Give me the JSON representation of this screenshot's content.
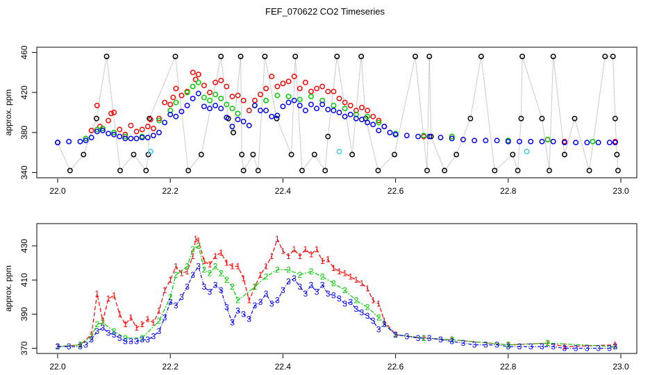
{
  "title": "FEF_070622  CO2 Timeseries",
  "colors": {
    "black": "#000000",
    "red": "#ff0000",
    "green": "#00cc00",
    "blue": "#0000ff",
    "cyan": "#33ccee",
    "grey": "#9a9a9a"
  },
  "chart_data": [
    {
      "type": "scatter",
      "title": "",
      "xlabel": "",
      "ylabel": "approx. ppm",
      "xlim": [
        22.0,
        23.0
      ],
      "ylim": [
        340,
        460
      ],
      "x_ticks": [
        "22.0",
        "22.2",
        "22.4",
        "22.6",
        "22.8",
        "23.0"
      ],
      "y_ticks": [
        "340",
        "380",
        "420",
        "460"
      ],
      "series": [
        {
          "name": "black",
          "color": "#000000",
          "description": "open circles; values mostly at extremes 342/358/394/456 connected by grey vertical lines",
          "x": [
            22.0,
            22.022,
            22.046,
            22.069,
            22.087,
            22.111,
            22.135,
            22.157,
            22.161,
            22.163,
            22.209,
            22.232,
            22.255,
            22.29,
            22.303,
            22.312,
            22.325,
            22.327,
            22.33,
            22.347,
            22.356,
            22.368,
            22.389,
            22.415,
            22.422,
            22.434,
            22.456,
            22.475,
            22.48,
            22.496,
            22.523,
            22.539,
            22.547,
            22.569,
            22.598,
            22.635,
            22.656,
            22.66,
            22.663,
            22.687,
            22.708,
            22.733,
            22.752,
            22.776,
            22.808,
            22.817,
            22.823,
            22.825,
            22.86,
            22.873,
            22.88,
            22.9,
            22.918,
            22.944,
            22.972,
            22.986,
            22.99,
            22.993,
            22.995
          ],
          "y": [
            370,
            342,
            358,
            394,
            456,
            342,
            358,
            342,
            358,
            394,
            456,
            342,
            358,
            456,
            394,
            380,
            456,
            358,
            342,
            358,
            342,
            456,
            394,
            358,
            456,
            342,
            358,
            342,
            376,
            456,
            358,
            456,
            394,
            342,
            358,
            456,
            342,
            456,
            376,
            342,
            358,
            394,
            456,
            342,
            358,
            342,
            394,
            456,
            394,
            342,
            456,
            358,
            394,
            342,
            456,
            456,
            394,
            358,
            342
          ]
        },
        {
          "name": "red",
          "color": "#ff0000",
          "x": [
            22.05,
            22.06,
            22.07,
            22.075,
            22.08,
            22.09,
            22.095,
            22.1,
            22.11,
            22.12,
            22.13,
            22.14,
            22.15,
            22.16,
            22.165,
            22.17,
            22.18,
            22.19,
            22.2,
            22.205,
            22.21,
            22.22,
            22.23,
            22.24,
            22.245,
            22.25,
            22.26,
            22.27,
            22.28,
            22.29,
            22.3,
            22.31,
            22.32,
            22.33,
            22.34,
            22.35,
            22.36,
            22.37,
            22.38,
            22.39,
            22.4,
            22.41,
            22.42,
            22.43,
            22.44,
            22.45,
            22.46,
            22.47,
            22.48,
            22.49,
            22.5,
            22.51,
            22.52,
            22.53,
            22.54,
            22.55,
            22.56,
            22.57,
            22.58,
            22.6,
            22.65,
            22.7,
            22.8,
            22.87,
            22.9,
            22.99
          ],
          "y": [
            374,
            382,
            407,
            386,
            384,
            392,
            399,
            400,
            383,
            378,
            387,
            381,
            383,
            386,
            393,
            384,
            394,
            410,
            408,
            415,
            424,
            417,
            421,
            440,
            433,
            438,
            427,
            420,
            430,
            432,
            426,
            416,
            417,
            412,
            402,
            412,
            418,
            424,
            436,
            426,
            429,
            431,
            436,
            424,
            430,
            421,
            424,
            426,
            421,
            421,
            414,
            410,
            407,
            402,
            405,
            402,
            396,
            392,
            386,
            378,
            376,
            376,
            372,
            373,
            371,
            371
          ]
        },
        {
          "name": "green",
          "color": "#00cc00",
          "x": [
            22.05,
            22.07,
            22.08,
            22.1,
            22.12,
            22.15,
            22.18,
            22.2,
            22.21,
            22.23,
            22.24,
            22.25,
            22.26,
            22.27,
            22.28,
            22.29,
            22.3,
            22.31,
            22.32,
            22.35,
            22.37,
            22.39,
            22.41,
            22.43,
            22.45,
            22.47,
            22.49,
            22.51,
            22.53,
            22.55,
            22.57,
            22.6,
            22.65,
            22.7,
            22.8,
            22.87,
            22.95
          ],
          "y": [
            374,
            383,
            384,
            380,
            376,
            376,
            392,
            402,
            410,
            420,
            426,
            430,
            415,
            412,
            418,
            414,
            408,
            404,
            399,
            407,
            412,
            417,
            416,
            413,
            416,
            412,
            407,
            404,
            398,
            396,
            390,
            379,
            377,
            376,
            372,
            373,
            371
          ]
        },
        {
          "name": "blue",
          "color": "#0000ff",
          "x": [
            22.0,
            22.02,
            22.04,
            22.05,
            22.06,
            22.07,
            22.08,
            22.09,
            22.1,
            22.11,
            22.12,
            22.13,
            22.14,
            22.15,
            22.16,
            22.17,
            22.18,
            22.19,
            22.2,
            22.21,
            22.22,
            22.23,
            22.24,
            22.25,
            22.26,
            22.27,
            22.28,
            22.29,
            22.3,
            22.31,
            22.32,
            22.33,
            22.34,
            22.35,
            22.36,
            22.37,
            22.38,
            22.39,
            22.4,
            22.41,
            22.42,
            22.43,
            22.44,
            22.45,
            22.46,
            22.47,
            22.48,
            22.49,
            22.5,
            22.51,
            22.52,
            22.53,
            22.54,
            22.55,
            22.56,
            22.57,
            22.58,
            22.59,
            22.6,
            22.62,
            22.64,
            22.66,
            22.68,
            22.7,
            22.72,
            22.74,
            22.76,
            22.78,
            22.8,
            22.82,
            22.84,
            22.86,
            22.88,
            22.9,
            22.92,
            22.94,
            22.96,
            22.98,
            22.99
          ],
          "y": [
            370,
            371,
            371,
            372,
            375,
            381,
            382,
            379,
            378,
            376,
            374,
            374,
            374,
            375,
            375,
            377,
            380,
            390,
            398,
            396,
            401,
            407,
            414,
            419,
            406,
            404,
            407,
            404,
            395,
            386,
            393,
            391,
            387,
            407,
            402,
            402,
            396,
            397,
            406,
            410,
            412,
            407,
            402,
            408,
            404,
            408,
            403,
            402,
            400,
            396,
            398,
            394,
            393,
            390,
            388,
            382,
            386,
            380,
            378,
            377,
            376,
            376,
            375,
            374,
            373,
            372,
            372,
            372,
            371,
            371,
            371,
            371,
            371,
            370,
            370,
            370,
            370,
            370,
            370
          ]
        },
        {
          "name": "cyan",
          "color": "#33ccee",
          "x": [
            22.165,
            22.5,
            22.833
          ],
          "y": [
            361,
            361,
            361
          ]
        }
      ]
    },
    {
      "type": "line",
      "title": "",
      "xlabel": "",
      "ylabel": "approx. ppm",
      "xlim": [
        22.0,
        23.0
      ],
      "ylim": [
        370,
        440
      ],
      "x_ticks": [
        "22.0",
        "22.2",
        "22.4",
        "22.6",
        "22.8",
        "23.0"
      ],
      "y_ticks": [
        "370",
        "390",
        "410",
        "430"
      ],
      "series": [
        {
          "name": "1",
          "color": "#ff0000",
          "marker_label": "1",
          "x": [
            22.0,
            22.04,
            22.06,
            22.07,
            22.08,
            22.09,
            22.1,
            22.11,
            22.12,
            22.13,
            22.14,
            22.15,
            22.16,
            22.17,
            22.18,
            22.19,
            22.2,
            22.21,
            22.22,
            22.23,
            22.24,
            22.245,
            22.25,
            22.26,
            22.27,
            22.28,
            22.29,
            22.3,
            22.31,
            22.32,
            22.33,
            22.34,
            22.35,
            22.36,
            22.37,
            22.38,
            22.39,
            22.4,
            22.41,
            22.42,
            22.43,
            22.44,
            22.45,
            22.46,
            22.47,
            22.48,
            22.49,
            22.5,
            22.51,
            22.52,
            22.53,
            22.54,
            22.55,
            22.56,
            22.57,
            22.58,
            22.6,
            22.65,
            22.7,
            22.8,
            22.87,
            22.9,
            22.99
          ],
          "y": [
            371,
            372,
            378,
            402,
            386,
            399,
            401,
            390,
            384,
            388,
            382,
            384,
            387,
            385,
            392,
            404,
            410,
            418,
            414,
            415,
            424,
            434,
            433,
            421,
            419,
            424,
            426,
            420,
            418,
            418,
            411,
            398,
            406,
            413,
            418,
            424,
            434,
            427,
            424,
            428,
            424,
            428,
            425,
            428,
            421,
            422,
            417,
            415,
            414,
            412,
            410,
            408,
            405,
            398,
            396,
            386,
            378,
            376,
            375,
            372,
            373,
            371,
            372
          ]
        },
        {
          "name": "2",
          "color": "#00cc00",
          "marker_label": "2",
          "x": [
            22.0,
            22.04,
            22.06,
            22.07,
            22.08,
            22.1,
            22.12,
            22.15,
            22.18,
            22.2,
            22.21,
            22.23,
            22.24,
            22.25,
            22.26,
            22.27,
            22.28,
            22.29,
            22.3,
            22.31,
            22.32,
            22.35,
            22.37,
            22.39,
            22.41,
            22.43,
            22.45,
            22.47,
            22.49,
            22.51,
            22.53,
            22.55,
            22.57,
            22.6,
            22.65,
            22.7,
            22.8,
            22.87,
            22.99
          ],
          "y": [
            371,
            372,
            377,
            384,
            385,
            380,
            376,
            376,
            386,
            400,
            413,
            418,
            428,
            430,
            416,
            414,
            418,
            414,
            410,
            406,
            398,
            406,
            412,
            416,
            416,
            413,
            415,
            412,
            408,
            404,
            398,
            394,
            388,
            378,
            376,
            375,
            372,
            373,
            371
          ]
        },
        {
          "name": "3",
          "color": "#0000ff",
          "marker_label": "3",
          "x": [
            22.0,
            22.02,
            22.04,
            22.05,
            22.06,
            22.07,
            22.08,
            22.09,
            22.1,
            22.11,
            22.12,
            22.13,
            22.14,
            22.15,
            22.16,
            22.17,
            22.18,
            22.19,
            22.2,
            22.21,
            22.22,
            22.23,
            22.24,
            22.25,
            22.26,
            22.27,
            22.28,
            22.29,
            22.3,
            22.31,
            22.32,
            22.33,
            22.34,
            22.35,
            22.36,
            22.37,
            22.38,
            22.39,
            22.4,
            22.41,
            22.42,
            22.43,
            22.44,
            22.45,
            22.46,
            22.47,
            22.48,
            22.49,
            22.5,
            22.51,
            22.52,
            22.53,
            22.54,
            22.55,
            22.56,
            22.57,
            22.58,
            22.6,
            22.62,
            22.64,
            22.66,
            22.68,
            22.7,
            22.72,
            22.74,
            22.76,
            22.78,
            22.8,
            22.82,
            22.84,
            22.86,
            22.88,
            22.9,
            22.92,
            22.94,
            22.96,
            22.98,
            22.99
          ],
          "y": [
            371,
            371,
            371,
            372,
            375,
            380,
            382,
            379,
            378,
            376,
            374,
            374,
            374,
            375,
            375,
            377,
            380,
            388,
            397,
            395,
            400,
            406,
            413,
            418,
            406,
            403,
            407,
            404,
            394,
            385,
            392,
            390,
            387,
            395,
            397,
            402,
            396,
            398,
            404,
            409,
            411,
            406,
            402,
            407,
            403,
            407,
            402,
            401,
            399,
            396,
            397,
            393,
            391,
            389,
            386,
            381,
            384,
            378,
            377,
            376,
            376,
            375,
            374,
            373,
            372,
            372,
            372,
            371,
            371,
            371,
            371,
            371,
            370,
            370,
            370,
            370,
            370,
            371
          ]
        }
      ]
    }
  ]
}
